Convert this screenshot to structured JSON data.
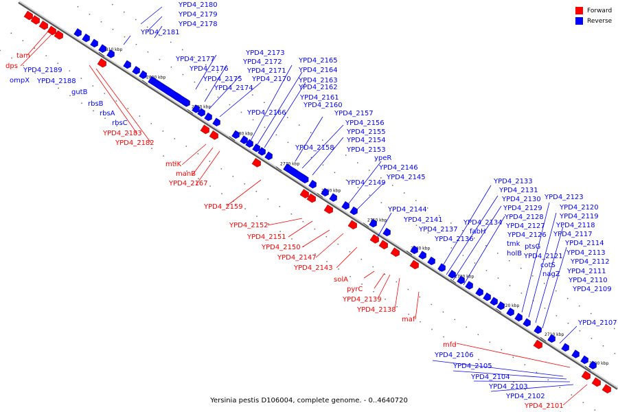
{
  "caption": "Yersinia pestis D106004, complete genome. - 0..4640720",
  "legend": [
    {
      "label": "Forward",
      "color": "#ff0000"
    },
    {
      "label": "Reverse",
      "color": "#0000ff"
    }
  ],
  "colors": {
    "forward": "#ff0000",
    "reverse": "#0000ff",
    "backbone": "#888888"
  },
  "ticks": [
    "2810 kbp",
    "2800 kbp",
    "2790 kbp",
    "2780 kbp",
    "2770 kbp",
    "2760 kbp",
    "2750 kbp",
    "2740 kbp",
    "2730 kbp",
    "2720 kbp",
    "2710 kbp",
    "2700 kbp"
  ],
  "reverse_labels": [
    "YPD4_2180",
    "YPD4_2179",
    "YPD4_2178",
    "YPD4_2181",
    "YPD4_2189",
    "ompX",
    "YPD4_2188",
    "YPD4_2177",
    "YPD4_2176",
    "YPD4_2175",
    "YPD4_2174",
    "YPD4_2173",
    "YPD4_2172",
    "YPD4_2171",
    "YPD4_2170",
    "gutB",
    "rbsB",
    "rbsA",
    "rbsC",
    "YPD4_2165",
    "YPD4_2164",
    "YPD4_2163",
    "YPD4_2162",
    "YPD4_2161",
    "YPD4_2160",
    "YPD4_2166",
    "YPD4_2157",
    "YPD4_2156",
    "YPD4_2155",
    "YPD4_2154",
    "YPD4_2158",
    "YPD4_2153",
    "ypeR",
    "YPD4_2146",
    "YPD4_2145",
    "YPD4_2149",
    "YPD4_2144",
    "YPD4_2141",
    "YPD4_2137",
    "YPD4_2136",
    "YPD4_2133",
    "YPD4_2131",
    "YPD4_2130",
    "YPD4_2129",
    "YPD4_2128",
    "YPD4_2127",
    "YPD4_2126",
    "YPD4_2134",
    "fabH",
    "tmk",
    "holB",
    "ptsG",
    "YPD4_2123",
    "YPD4_2120",
    "YPD4_2119",
    "YPD4_2118",
    "YPD4_2117",
    "YPD4_2121",
    "cotS",
    "nagZ",
    "YPD4_2114",
    "YPD4_2113",
    "YPD4_2112",
    "YPD4_2111",
    "YPD4_2110",
    "YPD4_2109",
    "YPD4_2107",
    "YPD4_2106",
    "YPD4_2105",
    "YPD4_2104",
    "YPD4_2103",
    "YPD4_2102"
  ],
  "forward_labels": [
    "tam",
    "dps",
    "YPD4_2183",
    "YPD4_2182",
    "mtlK",
    "manB",
    "YPD4_2167",
    "YPD4_2159",
    "YPD4_2152",
    "YPD4_2151",
    "YPD4_2150",
    "YPD4_2147",
    "YPD4_2143",
    "solA",
    "pyrC",
    "YPD4_2139",
    "YPD4_2138",
    "maf",
    "mfd",
    "YPD4_2101"
  ]
}
